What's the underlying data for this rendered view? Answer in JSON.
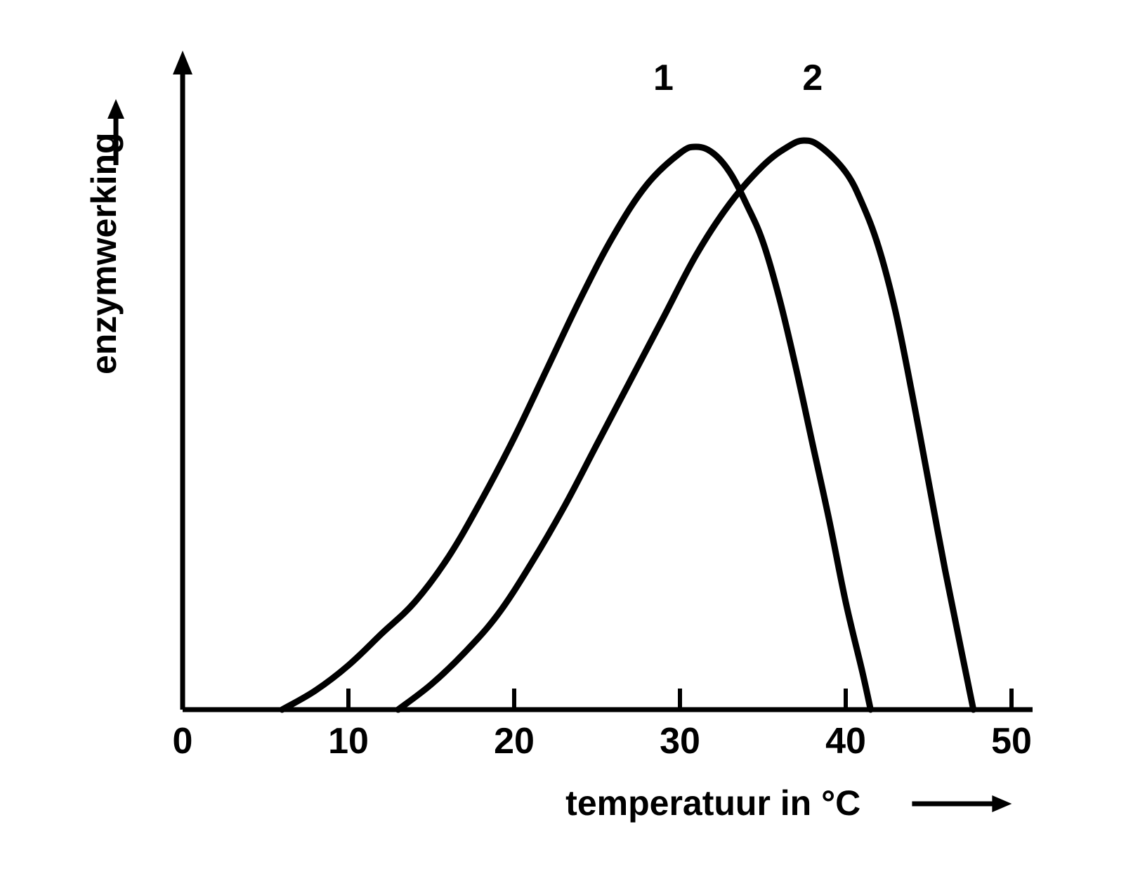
{
  "chart": {
    "type": "line",
    "y_axis_label": "enzymwerking",
    "x_axis_label": "temperatuur in °C",
    "x_ticks": [
      0,
      10,
      20,
      30,
      40,
      50
    ],
    "x_range": [
      0,
      50
    ],
    "y_range": [
      0,
      100
    ],
    "background_color": "#ffffff",
    "axis_color": "#000000",
    "axis_stroke_width": 7,
    "tick_stroke_width": 6,
    "tick_length": 30,
    "curve_stroke_width": 9,
    "label_fontsize": 50,
    "tick_fontsize": 52,
    "curve_label_fontsize": 52,
    "curves": [
      {
        "id": "1",
        "label": "1",
        "color": "#000000",
        "label_x": 29,
        "label_y": 98,
        "points": [
          {
            "x": 6,
            "y": 0
          },
          {
            "x": 8,
            "y": 3
          },
          {
            "x": 10,
            "y": 7
          },
          {
            "x": 12,
            "y": 12
          },
          {
            "x": 14,
            "y": 17
          },
          {
            "x": 16,
            "y": 24
          },
          {
            "x": 18,
            "y": 33
          },
          {
            "x": 20,
            "y": 43
          },
          {
            "x": 22,
            "y": 54
          },
          {
            "x": 24,
            "y": 65
          },
          {
            "x": 26,
            "y": 75
          },
          {
            "x": 28,
            "y": 83
          },
          {
            "x": 30,
            "y": 88
          },
          {
            "x": 31,
            "y": 89
          },
          {
            "x": 32,
            "y": 88
          },
          {
            "x": 33,
            "y": 85
          },
          {
            "x": 34,
            "y": 80
          },
          {
            "x": 35,
            "y": 74
          },
          {
            "x": 36,
            "y": 65
          },
          {
            "x": 37,
            "y": 54
          },
          {
            "x": 38,
            "y": 42
          },
          {
            "x": 39,
            "y": 30
          },
          {
            "x": 40,
            "y": 17
          },
          {
            "x": 41,
            "y": 6
          },
          {
            "x": 41.5,
            "y": 0
          }
        ]
      },
      {
        "id": "2",
        "label": "2",
        "color": "#000000",
        "label_x": 38,
        "label_y": 98,
        "points": [
          {
            "x": 13,
            "y": 0
          },
          {
            "x": 15,
            "y": 4
          },
          {
            "x": 17,
            "y": 9
          },
          {
            "x": 19,
            "y": 15
          },
          {
            "x": 21,
            "y": 23
          },
          {
            "x": 23,
            "y": 32
          },
          {
            "x": 25,
            "y": 42
          },
          {
            "x": 27,
            "y": 52
          },
          {
            "x": 29,
            "y": 62
          },
          {
            "x": 31,
            "y": 72
          },
          {
            "x": 33,
            "y": 80
          },
          {
            "x": 35,
            "y": 86
          },
          {
            "x": 36.5,
            "y": 89
          },
          {
            "x": 37.5,
            "y": 90
          },
          {
            "x": 38.5,
            "y": 89
          },
          {
            "x": 40,
            "y": 85
          },
          {
            "x": 41,
            "y": 80
          },
          {
            "x": 42,
            "y": 73
          },
          {
            "x": 43,
            "y": 63
          },
          {
            "x": 44,
            "y": 50
          },
          {
            "x": 45,
            "y": 36
          },
          {
            "x": 46,
            "y": 22
          },
          {
            "x": 47,
            "y": 9
          },
          {
            "x": 47.7,
            "y": 0
          }
        ]
      }
    ]
  }
}
